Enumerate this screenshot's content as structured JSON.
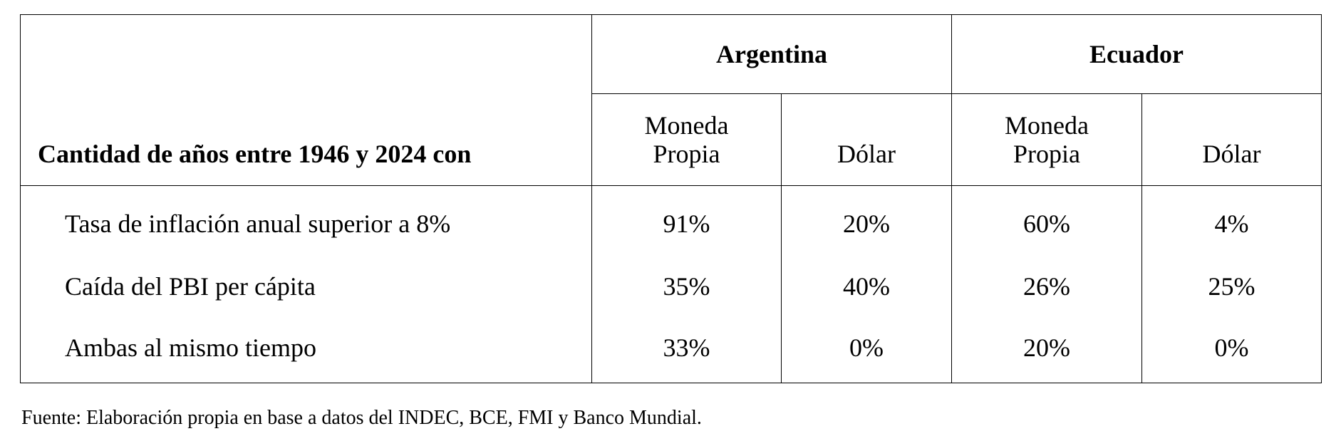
{
  "table": {
    "corner_label": "Cantidad de años entre 1946 y 2024 con",
    "countries": [
      {
        "name": "Argentina",
        "columns": [
          "Moneda\nPropia",
          "Dólar"
        ]
      },
      {
        "name": "Ecuador",
        "columns": [
          "Moneda\nPropia",
          "Dólar"
        ]
      }
    ],
    "rows": [
      {
        "label": "Tasa de inflación anual superior a 8%",
        "values": [
          "91%",
          "20%",
          "60%",
          "4%"
        ]
      },
      {
        "label": "Caída del PBI per cápita",
        "values": [
          "35%",
          "40%",
          "26%",
          "25%"
        ]
      },
      {
        "label": "Ambas al mismo tiempo",
        "values": [
          "33%",
          "0%",
          "20%",
          "0%"
        ]
      }
    ]
  },
  "source_note": "Fuente: Elaboración propia en base a datos del INDEC, BCE, FMI y Banco Mundial."
}
